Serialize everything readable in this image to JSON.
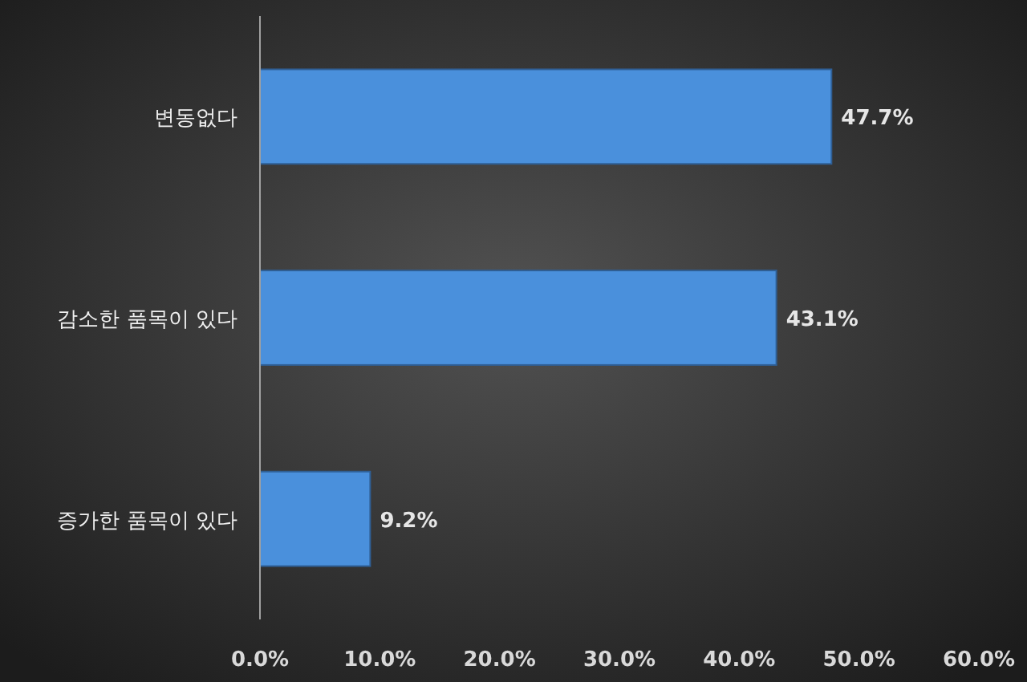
{
  "chart_data": {
    "type": "bar",
    "orientation": "horizontal",
    "categories": [
      "변동없다",
      "감소한 품목이 있다",
      "증가한 품목이 있다"
    ],
    "values": [
      47.7,
      43.1,
      9.2
    ],
    "value_labels": [
      "47.7%",
      "43.1%",
      "9.2%"
    ],
    "color": "#4a90dc",
    "xlim": [
      0,
      60
    ],
    "xticks": [
      {
        "value": 0,
        "label": "0.0%"
      },
      {
        "value": 10,
        "label": "10.0%"
      },
      {
        "value": 20,
        "label": "20.0%"
      },
      {
        "value": 30,
        "label": "30.0%"
      },
      {
        "value": 40,
        "label": "40.0%"
      },
      {
        "value": 50,
        "label": "50.0%"
      },
      {
        "value": 60,
        "label": "60.0%"
      }
    ]
  }
}
